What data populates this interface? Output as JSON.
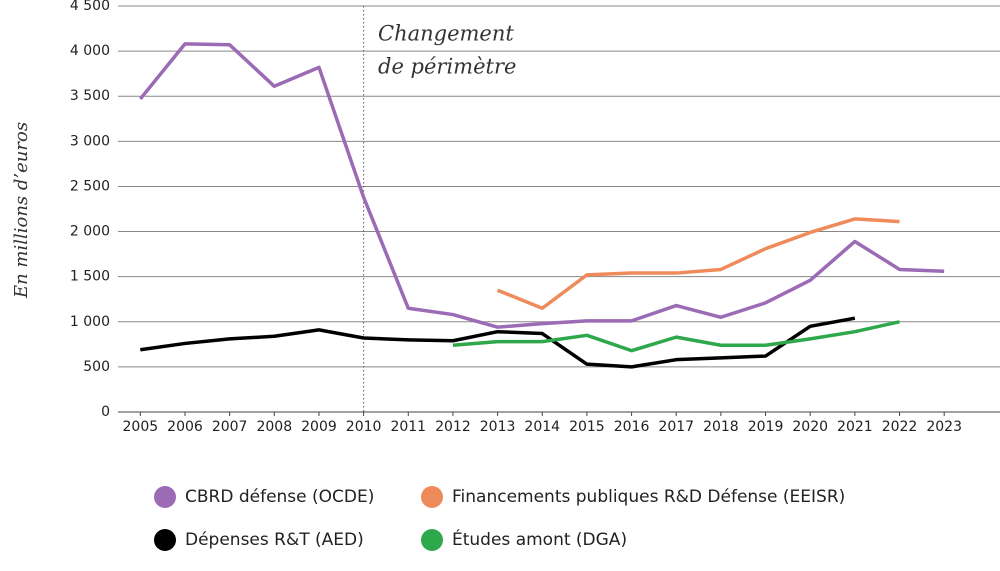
{
  "chart_data": {
    "type": "line",
    "y_label": "En millions d’euros",
    "annotation": {
      "lines": [
        "Changement",
        "de périmètre"
      ],
      "x": 2010
    },
    "x": [
      2005,
      2006,
      2007,
      2008,
      2009,
      2010,
      2011,
      2012,
      2013,
      2014,
      2015,
      2016,
      2017,
      2018,
      2019,
      2020,
      2021,
      2022,
      2023
    ],
    "xlim": [
      2004.5,
      2024.25
    ],
    "xticks": [
      2005,
      2006,
      2007,
      2008,
      2009,
      2010,
      2011,
      2012,
      2013,
      2014,
      2015,
      2016,
      2017,
      2018,
      2019,
      2020,
      2021,
      2022,
      2023
    ],
    "ylim": [
      0,
      4500
    ],
    "yticks": [
      0,
      500,
      {
        "value": 1000,
        "label": "1 000"
      },
      {
        "value": 1500,
        "label": "1 500"
      },
      {
        "value": 2000,
        "label": "2 000"
      },
      {
        "value": 2500,
        "label": "2 500"
      },
      {
        "value": 3000,
        "label": "3 000"
      },
      {
        "value": 3500,
        "label": "3 500"
      },
      {
        "value": 4000,
        "label": "4 000"
      },
      {
        "value": 4500,
        "label": "4 500"
      }
    ],
    "grid": true,
    "series": [
      {
        "name": "CBRD défense (OCDE)",
        "color": "#9b6bb5",
        "values": [
          3470,
          4080,
          4070,
          3610,
          3820,
          2380,
          1150,
          1080,
          940,
          980,
          1010,
          1010,
          1180,
          1050,
          1210,
          1460,
          1890,
          1580,
          1560
        ]
      },
      {
        "name": "Financements publiques R&D Défense (EEISR)",
        "color": "#ef8b5a",
        "values": [
          null,
          null,
          null,
          null,
          null,
          null,
          null,
          null,
          1350,
          1150,
          1520,
          1540,
          1540,
          1580,
          1810,
          1990,
          2140,
          2110,
          null
        ]
      },
      {
        "name": "Dépenses R&T (AED)",
        "color": "#000000",
        "values": [
          690,
          760,
          810,
          840,
          910,
          820,
          800,
          790,
          890,
          870,
          530,
          500,
          580,
          600,
          620,
          950,
          1040,
          null,
          null
        ]
      },
      {
        "name": "Études amont (DGA)",
        "color": "#2ea84a",
        "values": [
          null,
          null,
          null,
          null,
          null,
          null,
          null,
          740,
          780,
          780,
          850,
          680,
          830,
          740,
          740,
          810,
          890,
          1000,
          null
        ]
      }
    ]
  }
}
